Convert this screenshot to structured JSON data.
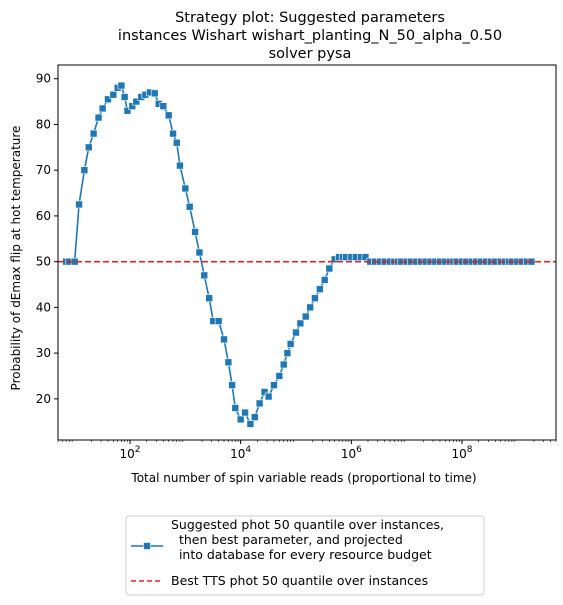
{
  "chart_data": {
    "type": "line",
    "title": [
      "Strategy plot: Suggested parameters",
      "instances Wishart wishart_planting_N_50_alpha_0.50",
      "solver pysa"
    ],
    "xlabel": "Total number of spin variable reads (proportional to time)",
    "ylabel": "Probability of dEmax flip at hot temperature",
    "x_scale": "log",
    "xlim": [
      5,
      5000000000
    ],
    "ylim": [
      11,
      93
    ],
    "x_ticks": [
      {
        "value": 100,
        "base": "10",
        "exp": "2"
      },
      {
        "value": 10000,
        "base": "10",
        "exp": "4"
      },
      {
        "value": 1000000,
        "base": "10",
        "exp": "6"
      },
      {
        "value": 100000000,
        "base": "10",
        "exp": "8"
      }
    ],
    "y_ticks": [
      20,
      30,
      40,
      50,
      60,
      70,
      80,
      90
    ],
    "grid": false,
    "legend": "bottom-center-outside",
    "series": [
      {
        "name": "Suggested phot 50 quantile over instances,\n  then best parameter, and projected\n  into database for every resource budget",
        "color": "#1f77b4",
        "marker": "square",
        "x": [
          7,
          8,
          10,
          12,
          15,
          18,
          22,
          27,
          32,
          40,
          50,
          60,
          70,
          80,
          90,
          110,
          130,
          160,
          190,
          230,
          280,
          330,
          400,
          500,
          600,
          700,
          800,
          1000,
          1200,
          1500,
          1800,
          2200,
          2700,
          3200,
          4000,
          5000,
          6000,
          7000,
          8000,
          10000,
          12000,
          15000,
          18000,
          22000,
          27000,
          32000,
          40000,
          50000,
          60000,
          70000,
          80000,
          100000,
          120000,
          150000,
          180000,
          220000,
          270000,
          330000,
          400000,
          500000,
          600000,
          700000,
          800000,
          1000000,
          1200000,
          1500000,
          1800000,
          2200000,
          2700000,
          3300000,
          4000000,
          5000000,
          6000000,
          7000000,
          8000000,
          10000000,
          12000000,
          15000000,
          18000000,
          22000000,
          27000000,
          33000000,
          40000000,
          50000000,
          60000000,
          70000000,
          80000000,
          100000000,
          120000000,
          150000000,
          180000000,
          220000000,
          270000000,
          330000000,
          400000000,
          500000000,
          600000000,
          700000000,
          800000000,
          1000000000,
          1200000000,
          1500000000,
          1800000000
        ],
        "y": [
          50,
          50,
          50,
          62.5,
          70,
          75,
          78,
          81.5,
          83.5,
          85.5,
          86.5,
          88,
          88.5,
          86,
          83,
          84,
          85,
          86,
          86.5,
          87,
          86.8,
          84.5,
          84,
          82,
          78,
          76,
          71,
          66,
          62,
          56.5,
          52,
          47,
          42,
          37,
          37,
          33,
          28,
          23,
          18,
          15.5,
          17,
          14.5,
          16,
          19,
          21.5,
          20.5,
          23,
          25,
          27.5,
          30,
          32,
          34.5,
          36.5,
          38,
          40,
          42,
          44,
          46,
          48.5,
          50.5,
          51,
          51,
          51,
          51,
          51,
          51,
          51,
          50,
          50,
          50,
          50,
          50,
          50,
          50,
          50,
          50,
          50,
          50,
          50,
          50,
          50,
          50,
          50,
          50,
          50,
          50,
          50,
          50,
          50,
          50,
          50,
          50,
          50,
          50,
          50,
          50,
          50,
          50,
          50,
          50,
          50,
          50,
          50
        ]
      },
      {
        "name": "Best TTS phot 50 quantile over instances",
        "color": "#d62728",
        "style": "dashed",
        "y_const": 50
      }
    ]
  }
}
